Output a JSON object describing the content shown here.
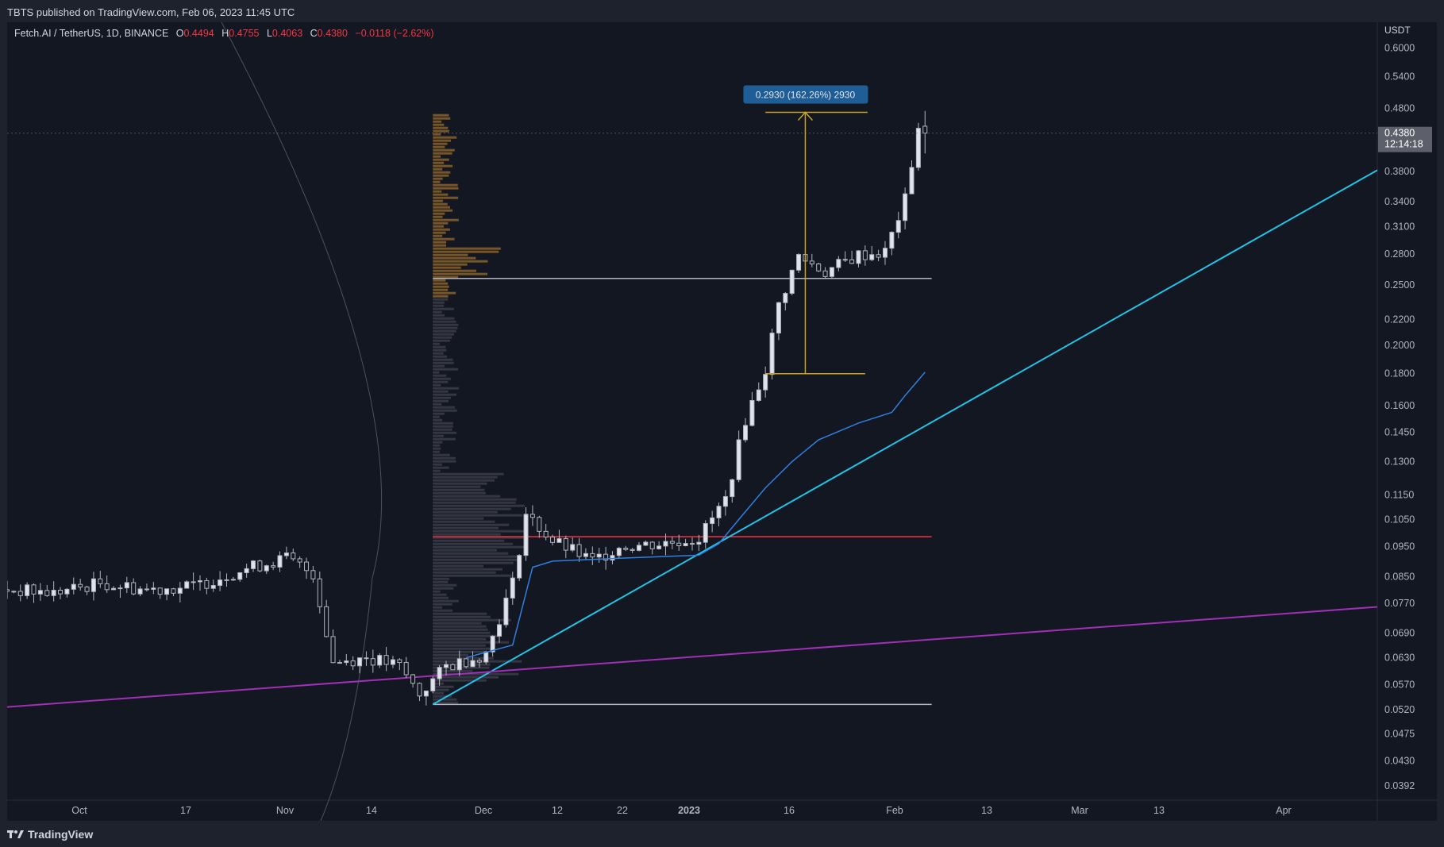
{
  "header": {
    "published": "TBTS published on TradingView.com, Feb 06, 2023 11:45 UTC"
  },
  "legend": {
    "symbol": "Fetch.AI / TetherUS, 1D, BINANCE",
    "open_label": "O",
    "open": "0.4494",
    "high_label": "H",
    "high": "0.4755",
    "low_label": "L",
    "low": "0.4063",
    "close_label": "C",
    "close": "0.4380",
    "change": "−0.0118 (−2.62%)"
  },
  "price_axis": {
    "currency": "USDT",
    "ticks": [
      "0.6000",
      "0.5400",
      "0.4800",
      "0.4380",
      "0.3800",
      "0.3400",
      "0.3100",
      "0.2800",
      "0.2500",
      "0.2200",
      "0.2000",
      "0.1800",
      "0.1600",
      "0.1450",
      "0.1300",
      "0.1150",
      "0.1050",
      "0.0950",
      "0.0850",
      "0.0770",
      "0.0690",
      "0.0630",
      "0.0570",
      "0.0520",
      "0.0475",
      "0.0430",
      "0.0392"
    ],
    "last_price": "0.4380",
    "countdown": "12:14:18"
  },
  "time_axis": {
    "ticks": [
      "Oct",
      "17",
      "Nov",
      "14",
      "Dec",
      "12",
      "22",
      "2023",
      "16",
      "Feb",
      "13",
      "Mar",
      "13",
      "Apr"
    ],
    "bold": [
      "2023"
    ]
  },
  "measure_label": "0.2930 (162.26%) 2930",
  "footer": {
    "brand": "TradingView"
  },
  "colors": {
    "background": "#131722",
    "candle": "#b2b5be",
    "red_level": "#f23645",
    "cyan_trend": "#22c3e6",
    "purple_trend": "#a12fb8",
    "measure": "#c9a227",
    "ma_line": "#2f7fe0",
    "level_white": "#b2b5be"
  },
  "chart_data": {
    "type": "candlestick",
    "title": "Fetch.AI / TetherUS, 1D, BINANCE",
    "y_scale": "log",
    "ylim": [
      0.0372,
      0.66
    ],
    "x_range": [
      "2022-09-21",
      "2023-04-15"
    ],
    "candles_close_points": [
      [
        "2022-09-21",
        0.081
      ],
      [
        "2022-09-28",
        0.08
      ],
      [
        "2022-10-05",
        0.083
      ],
      [
        "2022-10-12",
        0.081
      ],
      [
        "2022-10-19",
        0.082
      ],
      [
        "2022-10-26",
        0.087
      ],
      [
        "2022-11-02",
        0.091
      ],
      [
        "2022-11-06",
        0.086
      ],
      [
        "2022-11-09",
        0.062
      ],
      [
        "2022-11-14",
        0.063
      ],
      [
        "2022-11-19",
        0.061
      ],
      [
        "2022-11-22",
        0.055
      ],
      [
        "2022-11-26",
        0.061
      ],
      [
        "2022-12-02",
        0.064
      ],
      [
        "2022-12-06",
        0.083
      ],
      [
        "2022-12-08",
        0.107
      ],
      [
        "2022-12-12",
        0.097
      ],
      [
        "2022-12-18",
        0.09
      ],
      [
        "2022-12-22",
        0.095
      ],
      [
        "2022-12-28",
        0.096
      ],
      [
        "2023-01-03",
        0.098
      ],
      [
        "2023-01-07",
        0.113
      ],
      [
        "2023-01-10",
        0.152
      ],
      [
        "2023-01-13",
        0.183
      ],
      [
        "2023-01-15",
        0.232
      ],
      [
        "2023-01-18",
        0.278
      ],
      [
        "2023-01-22",
        0.262
      ],
      [
        "2023-01-27",
        0.279
      ],
      [
        "2023-01-31",
        0.282
      ],
      [
        "2023-02-03",
        0.342
      ],
      [
        "2023-02-05",
        0.4494
      ],
      [
        "2023-02-06",
        0.438
      ]
    ],
    "horizontal_levels": [
      {
        "price": 0.256,
        "color": "white",
        "from": "2022-11-24",
        "to": "2023-02-07"
      },
      {
        "price": 0.0985,
        "color": "red",
        "from": "2022-11-24",
        "to": "2023-02-07"
      },
      {
        "price": 0.053,
        "color": "white",
        "from": "2022-11-24",
        "to": "2023-02-07"
      }
    ],
    "trendlines": [
      {
        "color": "cyan",
        "from": [
          "2022-11-24",
          0.053
        ],
        "to": [
          "2023-04-15",
          0.382
        ]
      },
      {
        "color": "purple",
        "from": [
          "2022-09-21",
          0.0525
        ],
        "to": [
          "2023-04-15",
          0.076
        ]
      }
    ],
    "moving_average": [
      [
        "2022-11-29",
        0.063
      ],
      [
        "2022-12-06",
        0.066
      ],
      [
        "2022-12-09",
        0.088
      ],
      [
        "2022-12-12",
        0.09
      ],
      [
        "2022-12-22",
        0.091
      ],
      [
        "2023-01-03",
        0.092
      ],
      [
        "2023-01-06",
        0.096
      ],
      [
        "2023-01-09",
        0.105
      ],
      [
        "2023-01-13",
        0.118
      ],
      [
        "2023-01-17",
        0.13
      ],
      [
        "2023-01-21",
        0.141
      ],
      [
        "2023-01-27",
        0.15
      ],
      [
        "2023-02-01",
        0.156
      ],
      [
        "2023-02-03",
        0.166
      ],
      [
        "2023-02-06",
        0.181
      ]
    ],
    "measure": {
      "from_price": 0.18,
      "to_price": 0.473,
      "change": 0.293,
      "percent": "162.26%",
      "bars": "2930"
    }
  }
}
